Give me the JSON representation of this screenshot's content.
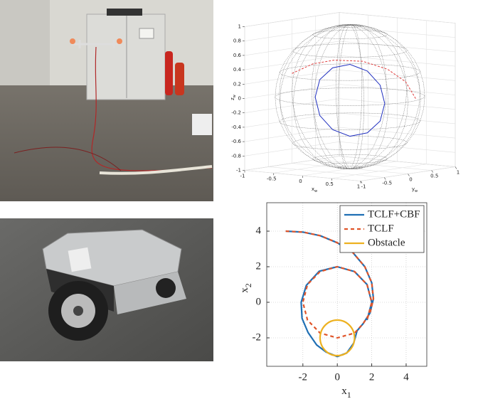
{
  "chart_data": [
    {
      "type": "sphere3d",
      "x_label": {
        "base": "x",
        "sub": "w"
      },
      "y_label": {
        "base": "y",
        "sub": "w"
      },
      "z_label": {
        "base": "z",
        "sub": "w"
      },
      "xlim": [
        -1,
        1
      ],
      "ylim": [
        -1,
        1
      ],
      "zlim": [
        -1,
        1
      ],
      "xticks": [
        -1,
        -0.5,
        0,
        0.5,
        1
      ],
      "yticks": [
        -1,
        -0.5,
        0,
        0.5,
        1
      ],
      "zticks": [
        -1,
        -0.8,
        -0.6,
        -0.4,
        -0.2,
        0,
        0.2,
        0.4,
        0.6,
        0.8,
        1
      ],
      "grid": true,
      "series": [
        {
          "color": "#1f2fbf",
          "dash": false,
          "x": [
            0.6,
            0.52,
            0.3,
            0,
            -0.3,
            -0.52,
            -0.6,
            -0.52,
            -0.3,
            0,
            0.3,
            0.52,
            0.6
          ],
          "y": [
            0,
            0,
            0,
            0,
            0,
            0,
            0,
            0,
            0,
            0,
            0,
            0,
            0
          ],
          "z": [
            -0.05,
            0.2,
            0.38,
            0.45,
            0.38,
            0.2,
            -0.05,
            -0.3,
            -0.48,
            -0.55,
            -0.48,
            -0.3,
            -0.05
          ]
        },
        {
          "color": "#e04040",
          "dash": true,
          "x": [
            -1.0,
            -0.64,
            -0.27,
            0.22,
            0.65,
            0.96,
            1.14
          ],
          "y": [
            0,
            0,
            0,
            0,
            0,
            0,
            0
          ],
          "z": [
            0.25,
            0.41,
            0.49,
            0.51,
            0.43,
            0.28,
            0.05
          ]
        }
      ]
    },
    {
      "type": "line",
      "x_label": {
        "base": "x",
        "sub": "1"
      },
      "y_label": {
        "base": "x",
        "sub": "2"
      },
      "xlim": [
        -4.1,
        5.2
      ],
      "ylim": [
        -3.6,
        5.6
      ],
      "xticks": [
        -2,
        0,
        2,
        4
      ],
      "yticks": [
        -2,
        0,
        2,
        4
      ],
      "grid": true,
      "legend": "upper-right",
      "series": [
        {
          "name": "TCLF+CBF",
          "color": "#1f6fb4",
          "dash": false,
          "x": [
            -3,
            -2,
            -1,
            0,
            0.9,
            1.6,
            2.0,
            2.1,
            1.9,
            1.5,
            1.15,
            0.95,
            0.55,
            0,
            -0.65,
            -1.2,
            -1.7,
            -2.05,
            -2.1,
            -1.8,
            -1.05,
            0,
            1,
            1.73,
            2,
            1.73
          ],
          "values": [
            4,
            3.95,
            3.75,
            3.35,
            2.8,
            2.0,
            1.1,
            0.2,
            -0.6,
            -1.2,
            -1.6,
            -2.3,
            -2.85,
            -3.05,
            -2.8,
            -2.4,
            -1.7,
            -0.9,
            0,
            0.95,
            1.75,
            2,
            1.73,
            1,
            0,
            -1
          ]
        },
        {
          "name": "TCLF",
          "color": "#e0552a",
          "dash": true,
          "x": [
            -3,
            -2,
            -1,
            0,
            0.9,
            1.6,
            2.0,
            2.1,
            1.9,
            1.5,
            1,
            0,
            -1,
            -1.73,
            -2,
            -1.73,
            -1,
            0,
            1,
            1.73,
            2,
            1.73
          ],
          "values": [
            4,
            3.95,
            3.75,
            3.35,
            2.8,
            2.0,
            1.1,
            0.2,
            -0.6,
            -1.2,
            -1.73,
            -2,
            -1.73,
            -1,
            0,
            1,
            1.73,
            2,
            1.73,
            1,
            0,
            -1
          ]
        },
        {
          "name": "Obstacle",
          "color": "#edb120",
          "shape": "circle",
          "center_x": 0,
          "center_y": -2,
          "radius": 1
        }
      ]
    }
  ]
}
